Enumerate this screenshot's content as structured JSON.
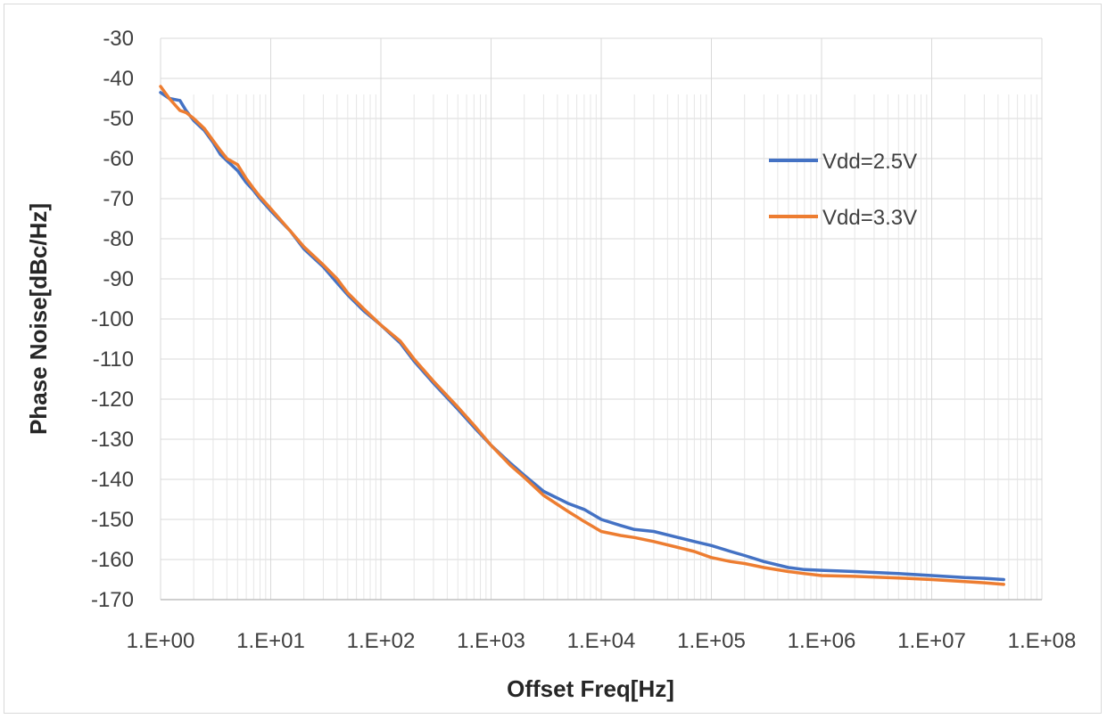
{
  "chart_data": {
    "type": "line",
    "title": "",
    "xlabel": "Offset Freq[Hz]",
    "ylabel": "Phase Noise[dBc/Hz]",
    "xscale": "log",
    "xlim": [
      1,
      100000000
    ],
    "ylim": [
      -170,
      -30
    ],
    "x_ticks": [
      1,
      10,
      100,
      1000,
      10000,
      100000,
      1000000,
      10000000,
      100000000
    ],
    "x_tick_labels": [
      "1.E+00",
      "1.E+01",
      "1.E+02",
      "1.E+03",
      "1.E+04",
      "1.E+05",
      "1.E+06",
      "1.E+07",
      "1.E+08"
    ],
    "y_ticks": [
      -30,
      -40,
      -50,
      -60,
      -70,
      -80,
      -90,
      -100,
      -110,
      -120,
      -130,
      -140,
      -150,
      -160,
      -170
    ],
    "y_tick_labels": [
      "-30",
      "-40",
      "-50",
      "-60",
      "-70",
      "-80",
      "-90",
      "-100",
      "-110",
      "-120",
      "-130",
      "-140",
      "-150",
      "-160",
      "-170"
    ],
    "grid": true,
    "legend_position": "right",
    "series": [
      {
        "name": "Vdd=2.5V",
        "color": "#4472c4",
        "x": [
          1,
          1.2,
          1.5,
          1.7,
          2,
          2.5,
          3,
          3.5,
          4,
          5,
          6,
          7,
          8,
          10,
          15,
          20,
          30,
          40,
          50,
          70,
          100,
          150,
          200,
          300,
          500,
          700,
          1000,
          1500,
          2000,
          3000,
          5000,
          7000,
          10000,
          15000,
          20000,
          30000,
          50000,
          70000,
          100000,
          150000,
          200000,
          300000,
          500000,
          700000,
          1000000,
          2000000,
          5000000,
          10000000,
          20000000,
          30000000,
          45000000
        ],
        "y": [
          -43.5,
          -45,
          -45.5,
          -48,
          -50.5,
          -53,
          -56,
          -59,
          -60.5,
          -63,
          -66,
          -68,
          -70,
          -73,
          -78,
          -82.5,
          -87,
          -91,
          -94,
          -98,
          -101.5,
          -106,
          -110.5,
          -116,
          -122.5,
          -127,
          -131.5,
          -136,
          -139,
          -143,
          -146,
          -147.5,
          -150,
          -151.5,
          -152.5,
          -153,
          -154.5,
          -155.5,
          -156.5,
          -158,
          -159,
          -160.5,
          -162,
          -162.5,
          -162.7,
          -163,
          -163.5,
          -164,
          -164.5,
          -164.7,
          -165
        ]
      },
      {
        "name": "Vdd=3.3V",
        "color": "#ed7d31",
        "x": [
          1,
          1.2,
          1.5,
          1.7,
          2,
          2.5,
          3,
          3.5,
          4,
          5,
          6,
          7,
          8,
          10,
          15,
          20,
          30,
          40,
          50,
          70,
          100,
          150,
          200,
          300,
          500,
          700,
          1000,
          1500,
          2000,
          3000,
          5000,
          7000,
          10000,
          15000,
          20000,
          30000,
          50000,
          70000,
          100000,
          150000,
          200000,
          300000,
          500000,
          700000,
          1000000,
          2000000,
          5000000,
          10000000,
          20000000,
          30000000,
          45000000
        ],
        "y": [
          -42,
          -45,
          -48,
          -48.5,
          -50,
          -52.5,
          -55.5,
          -58,
          -60,
          -61.5,
          -65,
          -67.5,
          -69.5,
          -72.5,
          -78,
          -82,
          -86.5,
          -90,
          -93.5,
          -97.5,
          -101.5,
          -105.5,
          -110,
          -115.5,
          -122,
          -126.5,
          -131.5,
          -136.5,
          -139.5,
          -144,
          -148,
          -150.5,
          -153,
          -154,
          -154.5,
          -155.5,
          -157,
          -158,
          -159.5,
          -160.5,
          -161,
          -162,
          -163,
          -163.5,
          -164,
          -164.2,
          -164.6,
          -165,
          -165.5,
          -165.8,
          -166.2
        ]
      }
    ]
  }
}
